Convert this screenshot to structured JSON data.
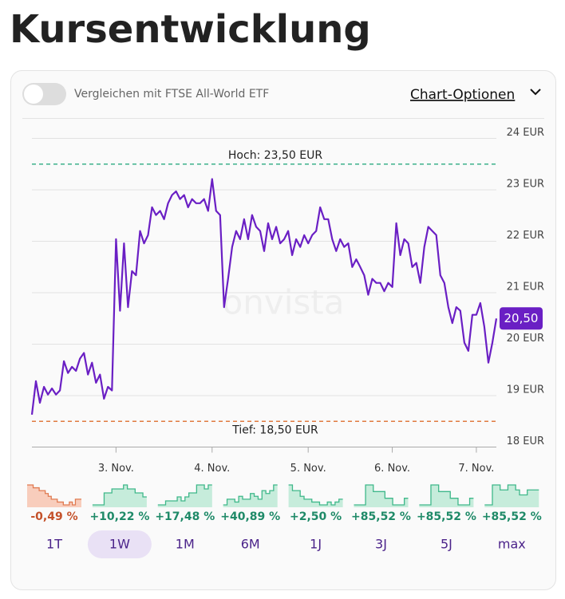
{
  "header": {
    "title": "Kursentwicklung"
  },
  "toolbar": {
    "compare_label": "Vergleichen mit FTSE All-World ETF",
    "compare_enabled": false,
    "options_label": "Chart-Optionen"
  },
  "chart_data": {
    "type": "line",
    "watermark": "onvista",
    "color": "#6a1fc4",
    "grid": true,
    "xlim": [
      0,
      116
    ],
    "xticks": [
      {
        "value": 21,
        "label": "3. Nov."
      },
      {
        "value": 45,
        "label": "4. Nov."
      },
      {
        "value": 69,
        "label": "5. Nov."
      },
      {
        "value": 90,
        "label": "6. Nov."
      },
      {
        "value": 111,
        "label": "7. Nov."
      }
    ],
    "ylim": [
      18,
      24
    ],
    "yticks": [
      {
        "value": 18,
        "label": "18 EUR"
      },
      {
        "value": 19,
        "label": "19 EUR"
      },
      {
        "value": 20,
        "label": "20 EUR"
      },
      {
        "value": 21,
        "label": "21 EUR"
      },
      {
        "value": 22,
        "label": "22 EUR"
      },
      {
        "value": 23,
        "label": "23 EUR"
      },
      {
        "value": 24,
        "label": "24 EUR"
      }
    ],
    "high": {
      "value": 23.5,
      "label": "Hoch: 23,50 EUR",
      "color": "#3cb08a"
    },
    "low": {
      "value": 18.5,
      "label": "Tief: 18,50 EUR",
      "color": "#e07a40"
    },
    "last": {
      "value": 20.5,
      "label": "20,50"
    },
    "values": [
      18.63,
      19.28,
      18.86,
      19.17,
      19.02,
      19.14,
      19.02,
      19.1,
      19.67,
      19.44,
      19.56,
      19.48,
      19.72,
      19.83,
      19.41,
      19.64,
      19.25,
      19.41,
      18.94,
      19.17,
      19.1,
      22.04,
      20.65,
      21.96,
      20.72,
      21.42,
      21.34,
      22.2,
      21.96,
      22.12,
      22.66,
      22.51,
      22.59,
      22.43,
      22.74,
      22.9,
      22.97,
      22.82,
      22.9,
      22.66,
      22.82,
      22.74,
      22.74,
      22.82,
      22.59,
      23.21,
      22.59,
      22.51,
      20.72,
      21.27,
      21.89,
      22.2,
      22.04,
      22.43,
      22.04,
      22.51,
      22.28,
      22.2,
      21.81,
      22.35,
      22.04,
      22.28,
      21.96,
      22.04,
      22.2,
      21.73,
      22.04,
      21.89,
      22.12,
      21.96,
      22.12,
      22.2,
      22.66,
      22.43,
      22.43,
      22.04,
      21.81,
      22.04,
      21.89,
      21.96,
      21.5,
      21.65,
      21.5,
      21.34,
      20.96,
      21.27,
      21.19,
      21.19,
      21.03,
      21.19,
      21.11,
      22.35,
      21.73,
      22.04,
      21.96,
      21.5,
      21.58,
      21.19,
      21.89,
      22.28,
      22.2,
      22.12,
      21.34,
      21.19,
      20.72,
      20.41,
      20.72,
      20.65,
      20.03,
      19.87,
      20.57,
      20.57,
      20.8,
      20.34,
      19.64,
      20.03,
      20.5
    ]
  },
  "selected_period": 1,
  "periods": [
    {
      "label": "1T",
      "change": -0.49,
      "change_label": "-0,49 %",
      "sparkline": [
        9,
        9,
        8,
        8,
        7,
        7,
        6,
        5,
        4,
        4,
        3,
        3,
        2,
        2,
        3,
        2,
        4,
        4
      ]
    },
    {
      "label": "1W",
      "change": 10.22,
      "change_label": "+10,22 %",
      "sparkline": [
        2,
        2,
        2,
        5,
        5,
        6,
        6,
        6,
        7,
        6,
        6,
        5,
        5,
        4
      ]
    },
    {
      "label": "1M",
      "change": 17.48,
      "change_label": "+17,48 %",
      "sparkline": [
        2,
        2,
        3,
        3,
        3,
        4,
        3,
        4,
        5,
        5,
        7,
        7,
        6,
        7
      ]
    },
    {
      "label": "6M",
      "change": 40.89,
      "change_label": "+40,89 %",
      "sparkline": [
        1,
        3,
        3,
        2,
        4,
        3,
        3,
        5,
        4,
        3,
        6,
        5,
        6,
        8
      ]
    },
    {
      "label": "1J",
      "change": 2.5,
      "change_label": "+2,50 %",
      "sparkline": [
        8,
        6,
        6,
        4,
        3,
        3,
        2,
        2,
        1,
        1,
        2,
        1,
        2,
        3
      ]
    },
    {
      "label": "3J",
      "change": 85.52,
      "change_label": "+85,52 %",
      "sparkline": [
        2,
        2,
        2,
        5,
        5,
        4,
        4,
        4,
        3,
        3,
        2,
        2,
        2,
        3
      ]
    },
    {
      "label": "5J",
      "change": 85.52,
      "change_label": "+85,52 %",
      "sparkline": [
        2,
        2,
        2,
        5,
        5,
        4,
        4,
        4,
        3,
        3,
        2,
        2,
        2,
        3
      ]
    },
    {
      "label": "max",
      "change": 85.52,
      "change_label": "+85,52 %",
      "sparkline": [
        2,
        2,
        6,
        6,
        5,
        5,
        6,
        6,
        5,
        4,
        4,
        5,
        5,
        5
      ]
    }
  ]
}
